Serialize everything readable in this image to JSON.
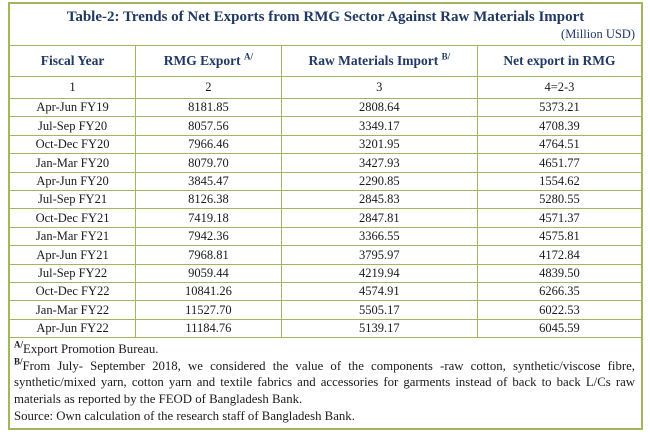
{
  "table": {
    "title": "Table-2: Trends of Net Exports from RMG Sector Against Raw Materials Import",
    "unit_note": "(Million USD)",
    "columns": [
      {
        "label": "Fiscal Year",
        "sup": "",
        "num": "1"
      },
      {
        "label": "RMG Export",
        "sup": "A/",
        "num": "2"
      },
      {
        "label": "Raw Materials Import",
        "sup": "B/",
        "num": "3"
      },
      {
        "label": "Net export in RMG",
        "sup": "",
        "num": "4=2-3"
      }
    ],
    "rows": [
      [
        "Apr-Jun FY19",
        "8181.85",
        "2808.64",
        "5373.21"
      ],
      [
        "Jul-Sep FY20",
        "8057.56",
        "3349.17",
        "4708.39"
      ],
      [
        "Oct-Dec FY20",
        "7966.46",
        "3201.95",
        "4764.51"
      ],
      [
        "Jan-Mar FY20",
        "8079.70",
        "3427.93",
        "4651.77"
      ],
      [
        "Apr-Jun FY20",
        "3845.47",
        "2290.85",
        "1554.62"
      ],
      [
        "Jul-Sep FY21",
        "8126.38",
        "2845.83",
        "5280.55"
      ],
      [
        "Oct-Dec FY21",
        "7419.18",
        "2847.81",
        "4571.37"
      ],
      [
        "Jan-Mar FY21",
        "7942.36",
        "3366.55",
        "4575.81"
      ],
      [
        "Apr-Jun FY21",
        "7968.81",
        "3795.97",
        "4172.84"
      ],
      [
        "Jul-Sep FY22",
        "9059.44",
        "4219.94",
        "4839.50"
      ],
      [
        "Oct-Dec FY22",
        "10841.26",
        "4574.91",
        "6266.35"
      ],
      [
        "Jan-Mar FY22",
        "11527.70",
        "5505.17",
        "6022.53"
      ],
      [
        "Apr-Jun FY22",
        "11184.76",
        "5139.17",
        "6045.59"
      ]
    ],
    "footnotes": {
      "a_sup": "A/",
      "a_text": "Export Promotion Bureau.",
      "b_sup": "B/",
      "b_text": "From July- September 2018, we considered the value of the components -raw cotton, synthetic/viscose fibre, synthetic/mixed yarn, cotton yarn and textile fabrics and accessories for garments instead of back to back L/Cs raw materials as reported by the FEOD of Bangladesh Bank.",
      "source": "Source: Own calculation of the research staff of Bangladesh Bank."
    },
    "colors": {
      "border_green": "#a0b75a",
      "title_navy": "#1f3864",
      "body_text": "#1a1a1a"
    }
  }
}
